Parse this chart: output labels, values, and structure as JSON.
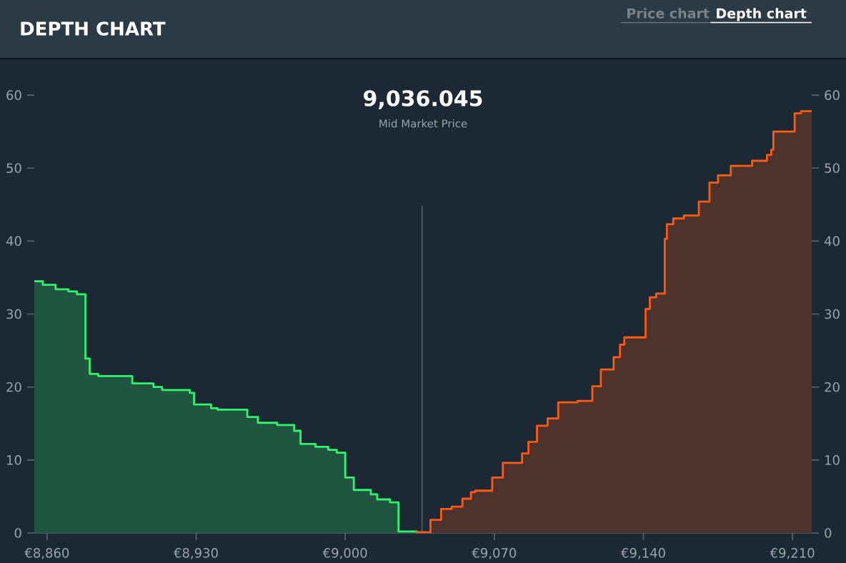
{
  "chart_data": {
    "type": "area",
    "title": "DEPTH CHART",
    "annotations": [
      "9,036.045",
      "Mid Market Price",
      "Price chart",
      "Depth chart"
    ],
    "xlim": [
      8854,
      9219
    ],
    "ylim": [
      0,
      65
    ],
    "y2lim": [
      0,
      65
    ],
    "xticks": [
      {
        "value": 8860,
        "label": "€8,860"
      },
      {
        "value": 8930,
        "label": "€8,930"
      },
      {
        "value": 9000,
        "label": "€9,000"
      },
      {
        "value": 9070,
        "label": "€9,070"
      },
      {
        "value": 9140,
        "label": "€9,140"
      },
      {
        "value": 9210,
        "label": "€9,210"
      }
    ],
    "yticks": [
      0,
      10,
      20,
      30,
      40,
      50,
      60
    ],
    "y2ticks": [
      0,
      10,
      20,
      30,
      40,
      50,
      60
    ],
    "ref_lines": [
      {
        "axis": "x",
        "value": 9036.045,
        "color": "#4a5661"
      }
    ],
    "series": [
      {
        "color": "#2ef56b",
        "x": [
          8854,
          8858,
          8858,
          8864,
          8864,
          8870,
          8870,
          8874,
          8874,
          8878,
          8878,
          8880,
          8880,
          8884,
          8884,
          8900,
          8900,
          8910,
          8910,
          8914,
          8914,
          8927,
          8927,
          8929,
          8929,
          8937,
          8937,
          8940,
          8940,
          8954,
          8954,
          8959,
          8959,
          8968,
          8968,
          8976,
          8976,
          8979,
          8979,
          8986,
          8986,
          8992,
          8992,
          8996,
          8996,
          9000,
          9000,
          9004,
          9004,
          9012,
          9012,
          9015,
          9015,
          9021,
          9021,
          9025,
          9025,
          9034
        ],
        "values": [
          34.5,
          34.5,
          34.0,
          34.0,
          33.4,
          33.4,
          33.1,
          33.1,
          32.7,
          32.7,
          23.9,
          23.9,
          21.8,
          21.8,
          21.5,
          21.5,
          20.5,
          20.5,
          20.0,
          20.0,
          19.6,
          19.6,
          19.2,
          19.2,
          17.6,
          17.6,
          17.1,
          17.1,
          16.9,
          16.9,
          15.9,
          15.9,
          15.1,
          15.1,
          14.8,
          14.8,
          14.0,
          14.0,
          12.2,
          12.2,
          11.8,
          11.8,
          11.4,
          11.4,
          11.0,
          11.0,
          7.6,
          7.6,
          5.9,
          5.9,
          5.3,
          5.3,
          4.6,
          4.6,
          4.2,
          4.2,
          0.2,
          0.2
        ]
      },
      {
        "color": "#ff5a14",
        "axis": "y2",
        "x": [
          9033,
          9040,
          9040,
          9045,
          9045,
          9050,
          9050,
          9055,
          9055,
          9059,
          9059,
          9061,
          9061,
          9069,
          9069,
          9074,
          9074,
          9083,
          9083,
          9086,
          9086,
          9090,
          9090,
          9095,
          9095,
          9100,
          9100,
          9109,
          9109,
          9116,
          9116,
          9120,
          9120,
          9126,
          9126,
          9129,
          9129,
          9131,
          9131,
          9141,
          9141,
          9143,
          9143,
          9146,
          9146,
          9150,
          9150,
          9151,
          9151,
          9154,
          9154,
          9159,
          9159,
          9166,
          9166,
          9171,
          9171,
          9175,
          9175,
          9181,
          9181,
          9191,
          9191,
          9198,
          9198,
          9200,
          9200,
          9201,
          9201,
          9211,
          9211,
          9214,
          9214,
          9219
        ],
        "values": [
          0.1,
          0.1,
          1.8,
          1.8,
          3.3,
          3.3,
          3.6,
          3.6,
          4.7,
          4.7,
          5.6,
          5.6,
          5.8,
          5.8,
          7.6,
          7.6,
          9.6,
          9.6,
          10.9,
          10.9,
          12.5,
          12.5,
          14.7,
          14.7,
          15.7,
          15.7,
          17.9,
          17.9,
          18.1,
          18.1,
          20.1,
          20.1,
          22.4,
          22.4,
          24.1,
          24.1,
          25.8,
          25.8,
          26.8,
          26.8,
          30.7,
          30.7,
          32.3,
          32.3,
          32.8,
          32.8,
          40.3,
          40.3,
          42.3,
          42.3,
          43.1,
          43.1,
          43.5,
          43.5,
          45.4,
          45.4,
          48.0,
          48.0,
          49.0,
          49.0,
          50.3,
          50.3,
          51.0,
          51.0,
          51.8,
          51.8,
          52.5,
          52.5,
          55.0,
          55.0,
          57.5,
          57.5,
          57.8,
          57.8
        ]
      }
    ]
  }
}
